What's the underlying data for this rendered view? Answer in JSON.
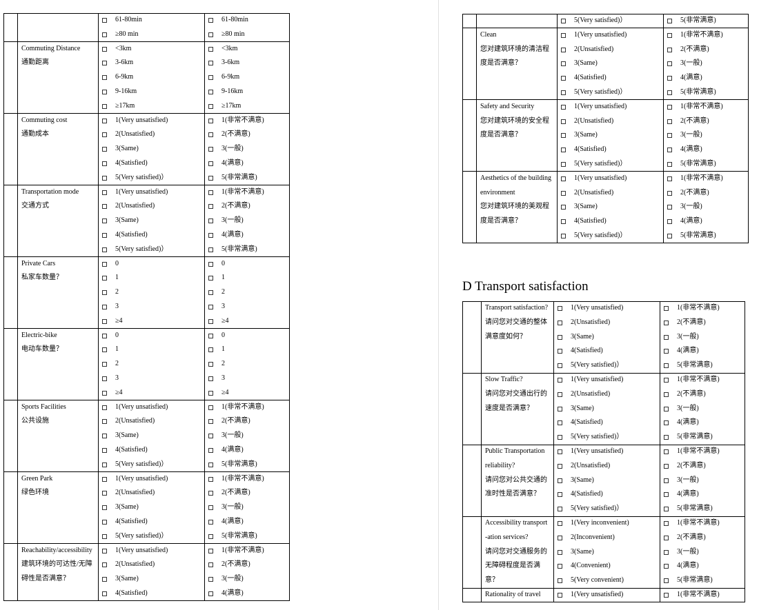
{
  "left_table": {
    "rows": [
      {
        "label": [],
        "en": [
          "61-80min",
          "≥80 min"
        ],
        "zh": [
          "61-80min",
          "≥80 min"
        ]
      },
      {
        "label": [
          "Commuting Distance",
          "通勤距离"
        ],
        "en": [
          "<3km",
          "3-6km",
          "6-9km",
          "9-16km",
          "≥17km"
        ],
        "zh": [
          "<3km",
          "3-6km",
          "6-9km",
          "9-16km",
          "≥17km"
        ]
      },
      {
        "label": [
          "Commuting cost",
          "通勤成本"
        ],
        "en": [
          "1(Very unsatisfied)",
          "2(Unsatisfied)",
          "3(Same)",
          "4(Satisfied)",
          "5(Very satisfied)）"
        ],
        "zh": [
          "1(非常不满意)",
          "2(不满意)",
          "3(一般)",
          "4(满意)",
          "5(非常满意)"
        ]
      },
      {
        "label": [
          "Transportation mode",
          "交通方式"
        ],
        "en": [
          "1(Very unsatisfied)",
          "2(Unsatisfied)",
          "3(Same)",
          "4(Satisfied)",
          "5(Very satisfied)）"
        ],
        "zh": [
          "1(非常不满意)",
          "2(不满意)",
          "3(一般)",
          "4(满意)",
          "5(非常满意)"
        ]
      },
      {
        "label": [
          "Private Cars",
          "私家车数量？"
        ],
        "en": [
          "0",
          "1",
          "2",
          "3",
          "≥4"
        ],
        "zh": [
          "0",
          "1",
          "2",
          "3",
          "≥4"
        ]
      },
      {
        "label": [
          "Electric-bike",
          "电动车数量？"
        ],
        "en": [
          "0",
          "1",
          "2",
          "3",
          "≥4"
        ],
        "zh": [
          "0",
          "1",
          "2",
          "3",
          "≥4"
        ]
      },
      {
        "label": [
          "Sports Facilities",
          "公共设施"
        ],
        "en": [
          "1(Very unsatisfied)",
          "2(Unsatisfied)",
          "3(Same)",
          "4(Satisfied)",
          "5(Very satisfied)）"
        ],
        "zh": [
          "1(非常不满意)",
          "2(不满意)",
          "3(一般)",
          "4(满意)",
          "5(非常满意)"
        ]
      },
      {
        "label": [
          "Green Park",
          "绿色环境"
        ],
        "en": [
          "1(Very unsatisfied)",
          "2(Unsatisfied)",
          "3(Same)",
          "4(Satisfied)",
          "5(Very satisfied)）"
        ],
        "zh": [
          "1(非常不满意)",
          "2(不满意)",
          "3(一般)",
          "4(满意)",
          "5(非常满意)"
        ]
      },
      {
        "label": [
          "Reachability/accessibility",
          "建筑环境的可达性/无障",
          "碍性是否满意？"
        ],
        "en": [
          "1(Very unsatisfied)",
          "2(Unsatisfied)",
          "3(Same)",
          "4(Satisfied)"
        ],
        "zh": [
          "1(非常不满意)",
          "2(不满意)",
          "3(一般)",
          "4(满意)"
        ]
      }
    ]
  },
  "right_table": {
    "rows": [
      {
        "label": [],
        "en": [
          "5(Very satisfied)）"
        ],
        "zh": [
          "5(非常满意)"
        ]
      },
      {
        "label": [
          "Clean",
          "您对建筑环境的清洁程",
          "度是否满意？"
        ],
        "en": [
          "1(Very unsatisfied)",
          "2(Unsatisfied)",
          "3(Same)",
          "4(Satisfied)",
          "5(Very satisfied)）"
        ],
        "zh": [
          "1(非常不满意)",
          "2(不满意)",
          "3(一般)",
          "4(满意)",
          "5(非常满意)"
        ]
      },
      {
        "label": [
          "Safety and Security",
          "您对建筑环境的安全程",
          "度是否满意？"
        ],
        "en": [
          "1(Very unsatisfied)",
          "2(Unsatisfied)",
          "3(Same)",
          "4(Satisfied)",
          "5(Very satisfied)）"
        ],
        "zh": [
          "1(非常不满意)",
          "2(不满意)",
          "3(一般)",
          "4(满意)",
          "5(非常满意)"
        ]
      },
      {
        "label": [
          "Aesthetics of the building",
          "environment",
          "您对建筑环境的美观程",
          "度是否满意？"
        ],
        "en": [
          "1(Very unsatisfied)",
          "2(Unsatisfied)",
          "3(Same)",
          "4(Satisfied)",
          "5(Very satisfied)）"
        ],
        "zh": [
          "1(非常不满意)",
          "2(不满意)",
          "3(一般)",
          "4(满意)",
          "5(非常满意)"
        ]
      }
    ]
  },
  "heading": "D Transport satisfaction",
  "transport_table": {
    "rows": [
      {
        "label": [
          "Transport satisfaction?",
          "请问您对交通的整体",
          "满意度如何？"
        ],
        "en": [
          "1(Very unsatisfied)",
          "2(Unsatisfied)",
          "3(Same)",
          "4(Satisfied)",
          "5(Very satisfied)）"
        ],
        "zh": [
          "1(非常不满意)",
          "2(不满意)",
          "3(一般)",
          "4(满意)",
          "5(非常满意)"
        ]
      },
      {
        "label": [
          "Slow Traffic?",
          "请问您对交通出行的",
          "速度是否满意？"
        ],
        "en": [
          "1(Very unsatisfied)",
          "2(Unsatisfied)",
          "3(Same)",
          "4(Satisfied)",
          "5(Very satisfied)）"
        ],
        "zh": [
          "1(非常不满意)",
          "2(不满意)",
          "3(一般)",
          "4(满意)",
          "5(非常满意)"
        ]
      },
      {
        "label": [
          "Public Transportation",
          "reliability?",
          "请问您对公共交通的",
          "准时性是否满意？"
        ],
        "en": [
          "1(Very unsatisfied)",
          "2(Unsatisfied)",
          "3(Same)",
          "4(Satisfied)",
          "5(Very satisfied)）"
        ],
        "zh": [
          "1(非常不满意)",
          "2(不满意)",
          "3(一般)",
          "4(满意)",
          "5(非常满意)"
        ]
      },
      {
        "label": [
          "Accessibility transport",
          "-ation services?",
          "请问您对交通服务的",
          "无障碍程度是否满",
          "意？"
        ],
        "en": [
          "1(Very inconvenient)",
          "2(Inconvenient)",
          "3(Same)",
          "4(Convenient)",
          "5(Very convenient)"
        ],
        "zh": [
          "1(非常不满意)",
          "2(不满意)",
          "3(一般)",
          "4(满意)",
          "5(非常满意)"
        ]
      },
      {
        "label": [
          "Rationality of travel"
        ],
        "en": [
          "1(Very unsatisfied)"
        ],
        "zh": [
          "1(非常不满意)"
        ]
      }
    ]
  }
}
